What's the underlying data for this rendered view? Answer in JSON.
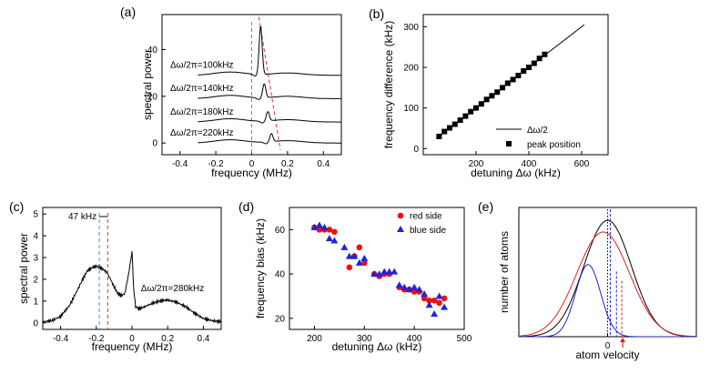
{
  "chart_data": [
    {
      "panel": "(a)",
      "type": "line",
      "xlabel": "frequency (MHz)",
      "ylabel": "spectral power",
      "xlim": [
        -0.5,
        0.5
      ],
      "ylim": [
        -5,
        55
      ],
      "xticks": [
        -0.4,
        -0.2,
        0.0,
        0.2,
        0.4
      ],
      "yticks": [
        0,
        20,
        40
      ],
      "series": [
        {
          "name": "Δω/2π=100kHz",
          "offset": 29,
          "peak_freq": 0.05,
          "peak_height": 21
        },
        {
          "name": "Δω/2π=140kHz",
          "offset": 19,
          "peak_freq": 0.07,
          "peak_height": 6
        },
        {
          "name": "Δω/2π=180kHz",
          "offset": 9,
          "peak_freq": 0.09,
          "peak_height": 4
        },
        {
          "name": "Δω/2π=220kHz",
          "offset": 0,
          "peak_freq": 0.11,
          "peak_height": 3.5
        }
      ],
      "annotations": {
        "blue_dashed_x": 0.0,
        "red_dashed_line": [
          [
            0.04,
            54
          ],
          [
            0.16,
            -3
          ]
        ]
      }
    },
    {
      "panel": "(b)",
      "type": "scatter",
      "xlabel": "detuning Δω (kHz)",
      "ylabel": "frequency difference (kHz)",
      "xlim": [
        0,
        700
      ],
      "ylim": [
        -15,
        330
      ],
      "xticks": [
        200,
        400,
        600
      ],
      "yticks": [
        0,
        100,
        200,
        300
      ],
      "legend": [
        "Δω/2",
        "peak position"
      ],
      "legend_position": "bottom-right",
      "line": {
        "name": "Δω/2",
        "slope": 0.5
      },
      "series": [
        {
          "name": "peak position",
          "x": [
            60,
            80,
            100,
            120,
            140,
            160,
            180,
            200,
            220,
            240,
            260,
            280,
            300,
            320,
            340,
            360,
            380,
            400,
            420,
            440,
            460
          ],
          "y": [
            30,
            42,
            51,
            60,
            70,
            80,
            91,
            100,
            110,
            121,
            130,
            139,
            150,
            161,
            170,
            180,
            191,
            200,
            210,
            222,
            232
          ]
        }
      ]
    },
    {
      "panel": "(c)",
      "type": "line",
      "xlabel": "frequency (MHz)",
      "ylabel": "spectral power",
      "xlim": [
        -0.5,
        0.5
      ],
      "ylim": [
        -0.3,
        5.3
      ],
      "xticks": [
        -0.4,
        -0.2,
        0.0,
        0.2,
        0.4
      ],
      "yticks": [
        0,
        1,
        2,
        3,
        4,
        5
      ],
      "annotations": {
        "shift_label": "47 kHz",
        "detuning_label": "Δω/2π=280kHz",
        "blue_dashed_x": -0.183,
        "red_dashed_x": -0.136
      },
      "series": [
        {
          "name": "spectrum",
          "x": [
            -0.5,
            -0.45,
            -0.4,
            -0.35,
            -0.3,
            -0.27,
            -0.25,
            -0.22,
            -0.2,
            -0.18,
            -0.16,
            -0.14,
            -0.12,
            -0.1,
            -0.08,
            -0.06,
            -0.04,
            -0.02,
            0.0,
            0.01,
            0.02,
            0.04,
            0.06,
            0.1,
            0.15,
            0.2,
            0.25,
            0.3,
            0.35,
            0.4,
            0.45,
            0.5
          ],
          "y": [
            0.05,
            0.1,
            0.3,
            0.8,
            1.6,
            2.1,
            2.4,
            2.55,
            2.6,
            2.55,
            2.45,
            2.3,
            2.0,
            1.65,
            1.35,
            1.25,
            1.35,
            2.2,
            3.25,
            1.5,
            0.75,
            0.65,
            0.7,
            0.85,
            1.0,
            1.05,
            0.95,
            0.75,
            0.45,
            0.2,
            0.1,
            0.05
          ]
        }
      ]
    },
    {
      "panel": "(d)",
      "type": "scatter",
      "xlabel": "detuning Δω (kHz)",
      "ylabel": "frequency bias (kHz)",
      "xlim": [
        150,
        500
      ],
      "ylim": [
        15,
        70
      ],
      "xticks": [
        200,
        300,
        400,
        500
      ],
      "yticks": [
        20,
        40,
        60
      ],
      "legend": [
        "red side",
        "blue side"
      ],
      "legend_position": "top-right",
      "series": [
        {
          "name": "red side",
          "color": "#ee1111",
          "x": [
            200,
            210,
            220,
            230,
            240,
            270,
            280,
            290,
            300,
            320,
            330,
            340,
            350,
            370,
            380,
            390,
            400,
            410,
            420,
            430,
            440,
            450,
            460
          ],
          "y": [
            61,
            60,
            60,
            60,
            59,
            43,
            48,
            52,
            45,
            40,
            39,
            40,
            40,
            34,
            33,
            33,
            32,
            32,
            29,
            28,
            28,
            27,
            29
          ]
        },
        {
          "name": "blue side",
          "color": "#2222dd",
          "x": [
            200,
            210,
            220,
            230,
            240,
            260,
            270,
            280,
            290,
            300,
            320,
            330,
            340,
            350,
            360,
            370,
            380,
            390,
            400,
            410,
            420,
            430,
            440,
            450,
            460
          ],
          "y": [
            61,
            62,
            61,
            56,
            55,
            52,
            48,
            48,
            45,
            47,
            40,
            40,
            41,
            41,
            41,
            35,
            34,
            33,
            34,
            33,
            31,
            26,
            22,
            30,
            25
          ]
        }
      ]
    },
    {
      "panel": "(e)",
      "type": "line",
      "xlabel": "atom velocity",
      "ylabel": "number of atoms",
      "xticks": [
        0
      ],
      "curves": [
        {
          "name": "total",
          "color": "#000000",
          "center": 0.0,
          "width": 0.38,
          "amp": 1.0
        },
        {
          "name": "red side",
          "color": "#dd2222",
          "center": -0.05,
          "width": 0.42,
          "amp": 0.9
        },
        {
          "name": "blue side",
          "color": "#2222cc",
          "center": -0.22,
          "width": 0.2,
          "amp": 0.62
        }
      ]
    }
  ],
  "labels": {
    "panel_a": "(a)",
    "panel_b": "(b)",
    "panel_c": "(c)",
    "panel_d": "(d)",
    "panel_e": "(e)"
  }
}
